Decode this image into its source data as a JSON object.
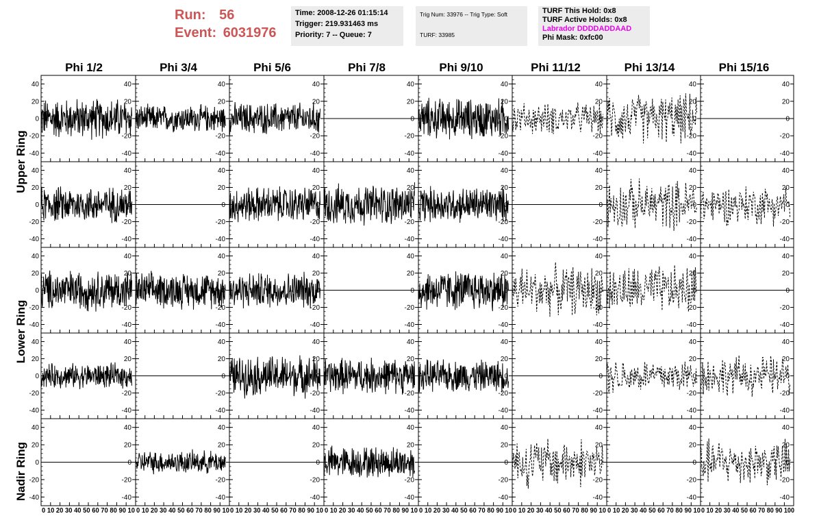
{
  "header": {
    "run_label": "Run:",
    "run_value": "56",
    "event_label": "Event:",
    "event_value": "6031976",
    "time": "Time: 2008-12-26 01:15:14",
    "trigger": "Trigger: 219.931463 ms",
    "priority": "Priority: 7 -- Queue: 7",
    "trig_line": "Trig Num: 33976 -- Trig Type: Soft",
    "turf": "TURF: 33985",
    "turf_hold": "TURF This Hold: 0x8",
    "turf_active": "TURF Active Holds: 0x8",
    "labrador": "Labrador DDDDADDAAD",
    "phi_mask": "Phi Mask: 0xfc00"
  },
  "columns": [
    "Phi 1/2",
    "Phi 3/4",
    "Phi 5/6",
    "Phi 7/8",
    "Phi 9/10",
    "Phi 11/12",
    "Phi 13/14",
    "Phi 15/16"
  ],
  "rows": [
    "Upper Ring",
    "Lower Ring",
    "Nadir Ring"
  ],
  "chart_data": {
    "type": "line",
    "xlabel": "",
    "ylabel": "",
    "xlim": [
      0,
      100
    ],
    "ylim": [
      -50,
      50
    ],
    "y_ticks": [
      -40,
      -20,
      0,
      20,
      40
    ],
    "x_ticks": [
      0,
      10,
      20,
      30,
      40,
      50,
      60,
      70,
      80,
      90,
      100
    ],
    "x_tick_text": [
      "0 10 20 30 40 50 60 70 80 90 10",
      "0 10 20 30 40 50 60 70 80 90 10",
      "0 10 20 30 40 50 60 70 80 90 10",
      "0 10 20 30 40 50 60 70 80 90 10",
      "0 10 20 30 40 50 60 70 80 90 10",
      "0 10 20 30 40 50 60 70 80 90 10",
      "0 10 20 30 40 50 60 70 80 90 10",
      "0 10 20 30 40 50 60 70 80 90 100"
    ],
    "grid": false,
    "panels": [
      [
        {
          "amp": 18,
          "dashed": false
        },
        {
          "amp": 12,
          "dashed": false
        },
        {
          "amp": 14,
          "dashed": false
        },
        {
          "amp": 0,
          "dashed": false
        },
        {
          "amp": 18,
          "dashed": false
        },
        {
          "amp": 14,
          "dashed": true
        },
        {
          "amp": 22,
          "dashed": true
        },
        {
          "amp": 0,
          "dashed": false
        }
      ],
      [
        {
          "amp": 16,
          "dashed": false
        },
        {
          "amp": 0,
          "dashed": false
        },
        {
          "amp": 16,
          "dashed": false
        },
        {
          "amp": 18,
          "dashed": false
        },
        {
          "amp": 16,
          "dashed": false
        },
        {
          "amp": 0,
          "dashed": false
        },
        {
          "amp": 22,
          "dashed": true
        },
        {
          "amp": 18,
          "dashed": true
        }
      ],
      [
        {
          "amp": 18,
          "dashed": false
        },
        {
          "amp": 16,
          "dashed": false
        },
        {
          "amp": 16,
          "dashed": false
        },
        {
          "amp": 0,
          "dashed": false
        },
        {
          "amp": 18,
          "dashed": false
        },
        {
          "amp": 22,
          "dashed": true
        },
        {
          "amp": 22,
          "dashed": true
        },
        {
          "amp": 0,
          "dashed": false
        }
      ],
      [
        {
          "amp": 11,
          "dashed": false
        },
        {
          "amp": 0,
          "dashed": false
        },
        {
          "amp": 18,
          "dashed": false
        },
        {
          "amp": 16,
          "dashed": false
        },
        {
          "amp": 14,
          "dashed": false
        },
        {
          "amp": 0,
          "dashed": false
        },
        {
          "amp": 16,
          "dashed": true
        },
        {
          "amp": 18,
          "dashed": true
        }
      ],
      [
        {
          "amp": 0,
          "dashed": false
        },
        {
          "amp": 10,
          "dashed": false
        },
        {
          "amp": 0,
          "dashed": false
        },
        {
          "amp": 14,
          "dashed": false
        },
        {
          "amp": 0,
          "dashed": false
        },
        {
          "amp": 22,
          "dashed": true
        },
        {
          "amp": 0,
          "dashed": false
        },
        {
          "amp": 20,
          "dashed": true
        }
      ]
    ]
  }
}
